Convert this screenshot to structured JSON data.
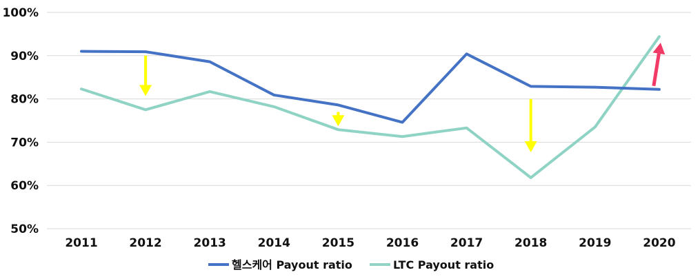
{
  "chart_data": {
    "type": "line",
    "categories": [
      "2011",
      "2012",
      "2013",
      "2014",
      "2015",
      "2016",
      "2017",
      "2018",
      "2019",
      "2020"
    ],
    "series": [
      {
        "name": "헬스케어 Payout ratio",
        "color": "#4472c4",
        "values": [
          91.0,
          90.9,
          88.6,
          80.9,
          78.6,
          74.6,
          90.4,
          82.9,
          82.7,
          82.2
        ]
      },
      {
        "name": "LTC Payout ratio",
        "color": "#8fd3c5",
        "values": [
          82.3,
          77.5,
          81.7,
          78.2,
          72.9,
          71.3,
          73.3,
          61.8,
          73.5,
          94.4
        ]
      }
    ],
    "y_ticks": [
      "50%",
      "60%",
      "70%",
      "80%",
      "90%",
      "100%"
    ],
    "ylim": [
      50,
      100
    ],
    "grid": true,
    "legend_position": "bottom-center",
    "annotations": [
      {
        "type": "arrow-down",
        "color": "#ffff00",
        "category": "2012",
        "from": 90.0,
        "to": 81.0
      },
      {
        "type": "arrow-down",
        "color": "#ffff00",
        "category": "2015",
        "from": 77.0,
        "to": 74.0
      },
      {
        "type": "arrow-down",
        "color": "#ffff00",
        "category": "2018",
        "from": 80.0,
        "to": 68.0
      },
      {
        "type": "arrow-up",
        "color": "#f23a66",
        "category": "2020",
        "from": 83.0,
        "to": 93.0
      }
    ]
  }
}
